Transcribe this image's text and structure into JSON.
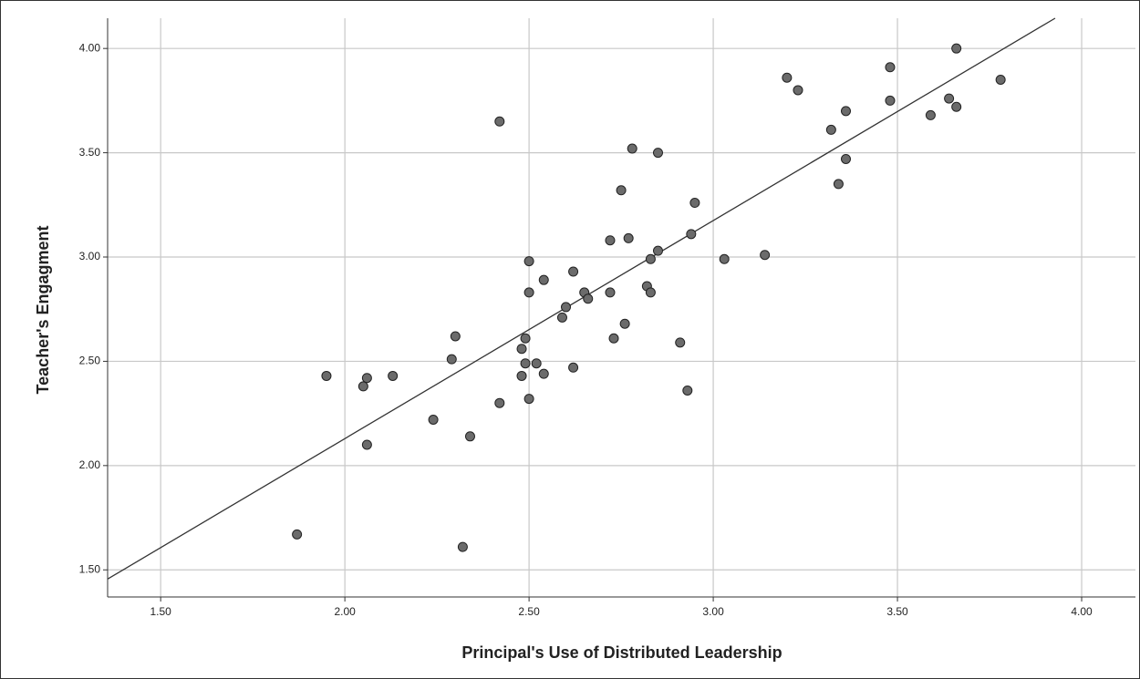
{
  "chart_data": {
    "type": "scatter",
    "xlabel": "Principal's Use of Distributed Leadership",
    "ylabel": "Teacher's Engagment",
    "color": "#6b6b6b",
    "grid": true,
    "xlim": [
      1.356,
      4.146
    ],
    "ylim": [
      1.37,
      4.145
    ],
    "xticks": [
      {
        "value": 1.5,
        "label": "1.50"
      },
      {
        "value": 2,
        "label": "2.00"
      },
      {
        "value": 2.5,
        "label": "2.50"
      },
      {
        "value": 3,
        "label": "3.00"
      },
      {
        "value": 3.5,
        "label": "3.50"
      },
      {
        "value": 4,
        "label": "4.00"
      }
    ],
    "yticks": [
      {
        "value": 1.5,
        "label": "1.50"
      },
      {
        "value": 2,
        "label": "2.00"
      },
      {
        "value": 2.5,
        "label": "2.50"
      },
      {
        "value": 3,
        "label": "3.00"
      },
      {
        "value": 3.5,
        "label": "3.50"
      },
      {
        "value": 4,
        "label": "4.00"
      }
    ],
    "x": [
      1.87,
      1.95,
      2.05,
      2.06,
      2.06,
      2.13,
      2.24,
      2.29,
      2.3,
      2.32,
      2.34,
      2.42,
      2.42,
      2.48,
      2.48,
      2.49,
      2.49,
      2.5,
      2.5,
      2.5,
      2.52,
      2.54,
      2.54,
      2.59,
      2.6,
      2.62,
      2.62,
      2.65,
      2.66,
      2.72,
      2.72,
      2.73,
      2.75,
      2.76,
      2.77,
      2.78,
      2.82,
      2.83,
      2.83,
      2.85,
      2.85,
      2.91,
      2.93,
      2.94,
      2.95,
      3.03,
      3.14,
      3.2,
      3.23,
      3.32,
      3.34,
      3.36,
      3.36,
      3.48,
      3.48,
      3.59,
      3.64,
      3.66,
      3.66,
      3.78
    ],
    "y": [
      1.67,
      2.43,
      2.38,
      2.42,
      2.1,
      2.43,
      2.22,
      2.51,
      2.62,
      1.61,
      2.14,
      3.65,
      2.3,
      2.56,
      2.43,
      2.61,
      2.49,
      2.32,
      2.98,
      2.83,
      2.49,
      2.89,
      2.44,
      2.71,
      2.76,
      2.93,
      2.47,
      2.83,
      2.8,
      2.83,
      3.08,
      2.61,
      3.32,
      2.68,
      3.09,
      3.52,
      2.86,
      2.99,
      2.83,
      3.5,
      3.03,
      2.59,
      2.36,
      3.11,
      3.26,
      2.99,
      3.01,
      3.86,
      3.8,
      3.61,
      3.35,
      3.47,
      3.7,
      3.91,
      3.75,
      3.68,
      3.76,
      4.0,
      3.72,
      3.85
    ],
    "fit_line": {
      "color": "#333333",
      "x": [
        1.356,
        3.928
      ],
      "y": [
        1.456,
        4.145
      ]
    }
  }
}
